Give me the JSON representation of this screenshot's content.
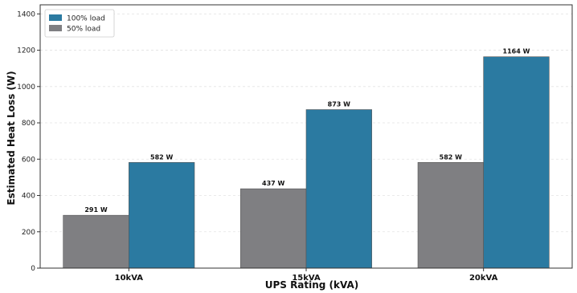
{
  "chart_data": {
    "type": "bar",
    "categories": [
      "10kVA",
      "15kVA",
      "20kVA"
    ],
    "series": [
      {
        "name": "50% load",
        "values": [
          291,
          437,
          582
        ],
        "labels": [
          "291 W",
          "437 W",
          "582 W"
        ],
        "color": "#7f7f82"
      },
      {
        "name": "100% load",
        "values": [
          582,
          873,
          1164
        ],
        "labels": [
          "582 W",
          "873 W",
          "1164 W"
        ],
        "color": "#2b7aa1"
      }
    ],
    "legend_order": [
      "100% load",
      "50% load"
    ],
    "xlabel": "UPS Rating (kVA)",
    "ylabel": "Estimated Heat Loss (W)",
    "ylim": [
      0,
      1450
    ],
    "yticks": [
      0,
      200,
      400,
      600,
      800,
      1000,
      1200,
      1400
    ],
    "grid": "y",
    "legend_position": "top-left"
  }
}
